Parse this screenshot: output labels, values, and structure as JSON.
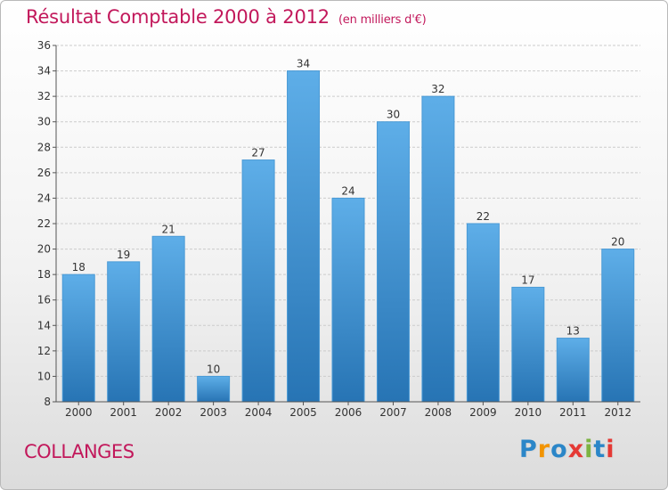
{
  "title": "Résultat Comptable 2000 à 2012",
  "unit": "(en milliers d'€)",
  "place": "COLLANGES",
  "logo": [
    "P",
    "r",
    "o",
    "x",
    "i",
    "t",
    "i"
  ],
  "colors": {
    "title": "#c2185b",
    "bar_top": "#5aabe6",
    "bar_bottom": "#2a78b8",
    "grid": "#cfcfcf"
  },
  "chart_data": {
    "type": "bar",
    "categories": [
      "2000",
      "2001",
      "2002",
      "2003",
      "2004",
      "2005",
      "2006",
      "2007",
      "2008",
      "2009",
      "2010",
      "2011",
      "2012"
    ],
    "values": [
      18,
      19,
      21,
      10,
      27,
      34,
      24,
      30,
      32,
      22,
      17,
      13,
      20
    ],
    "ylim": [
      8,
      36
    ],
    "yticks": [
      8,
      10,
      12,
      14,
      16,
      18,
      20,
      22,
      24,
      26,
      28,
      30,
      32,
      34,
      36
    ],
    "grid": true,
    "data_labels": true
  }
}
